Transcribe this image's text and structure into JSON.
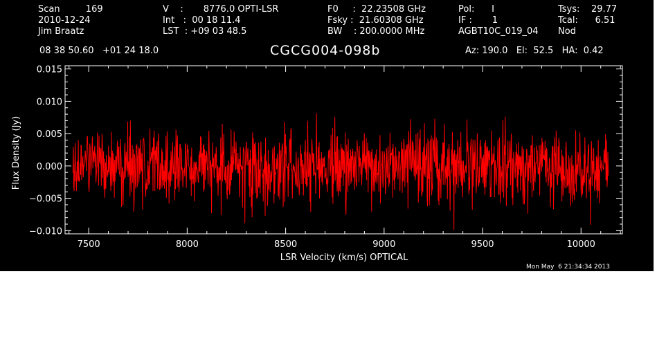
{
  "header": {
    "col1": [
      "Scan         169",
      "2010-12-24",
      "Jim Braatz"
    ],
    "col2": [
      "V    :       8776.0 OPTI-LSR",
      "Int   :  00 18 11.4",
      "LST  : +09 03 48.5"
    ],
    "col3": [
      "F0     :  22.23508 GHz",
      "Fsky :  21.60308 GHz",
      "BW    : 200.0000 MHz"
    ],
    "col4": [
      "Pol:      I",
      "IF :       1",
      "AGBT10C_019_04"
    ],
    "col5": [
      "Tsys:    29.77",
      "Tcal:      6.51",
      "Nod"
    ],
    "coords": "08 38 50.60   +01 24 18.0",
    "source": "CGCG004-098b",
    "pointing": "Az: 190.0   El:  52.5   HA:  0.42"
  },
  "timestamp": "Mon May  6 21:34:34 2013",
  "chart_data": {
    "type": "line",
    "xlabel": "LSR Velocity (km/s) OPTICAL",
    "ylabel": "Flux Density (Jy)",
    "xlim": [
      7380,
      10210
    ],
    "ylim": [
      -0.0105,
      0.0155
    ],
    "x_range": [
      7420,
      10140
    ],
    "x_ticks": [
      7500,
      8000,
      8500,
      9000,
      9500,
      10000
    ],
    "x_tick_labels": [
      "7500",
      "8000",
      "8500",
      "9000",
      "9500",
      "10000"
    ],
    "y_ticks": [
      -0.01,
      -0.005,
      0.0,
      0.005,
      0.01,
      0.015
    ],
    "y_tick_labels": [
      "−0.010",
      "−0.005",
      "0.000",
      "0.005",
      "0.010",
      "0.015"
    ],
    "series": [
      {
        "color": "#ff0000",
        "mean": 0.0,
        "rms": 0.0028,
        "n_channels": 1400
      }
    ],
    "colors": {
      "background": "#000000",
      "axes": "#ffffff",
      "trace": "#ff0000"
    }
  }
}
